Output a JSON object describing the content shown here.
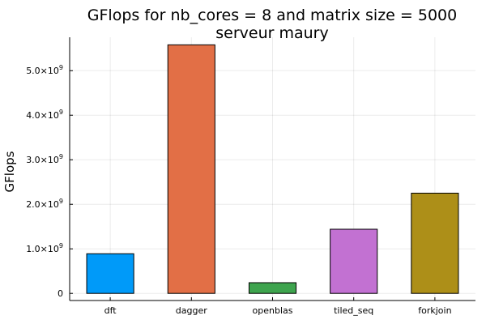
{
  "chart_data": {
    "type": "bar",
    "title": "GFlops for nb_cores = 8 and matrix size = 5000",
    "subtitle": "serveur maury",
    "xlabel": "",
    "ylabel": "GFlops",
    "categories": [
      "dft",
      "dagger",
      "openblas",
      "tiled_seq",
      "forkjoin"
    ],
    "values": [
      890000000,
      5580000000,
      240000000,
      1440000000,
      2250000000
    ],
    "colors": [
      "#009af9",
      "#e26f46",
      "#3ea44e",
      "#c271d2",
      "#ad8f18"
    ],
    "ylim": [
      -160000000,
      5750000000
    ],
    "yticks": [
      {
        "value": 0,
        "mantissa": "0",
        "exponent": ""
      },
      {
        "value": 1000000000,
        "mantissa": "1.0×10",
        "exponent": "9"
      },
      {
        "value": 2000000000,
        "mantissa": "2.0×10",
        "exponent": "9"
      },
      {
        "value": 3000000000,
        "mantissa": "3.0×10",
        "exponent": "9"
      },
      {
        "value": 4000000000,
        "mantissa": "4.0×10",
        "exponent": "9"
      },
      {
        "value": 5000000000,
        "mantissa": "5.0×10",
        "exponent": "9"
      }
    ],
    "grid": true,
    "legend": "none"
  }
}
